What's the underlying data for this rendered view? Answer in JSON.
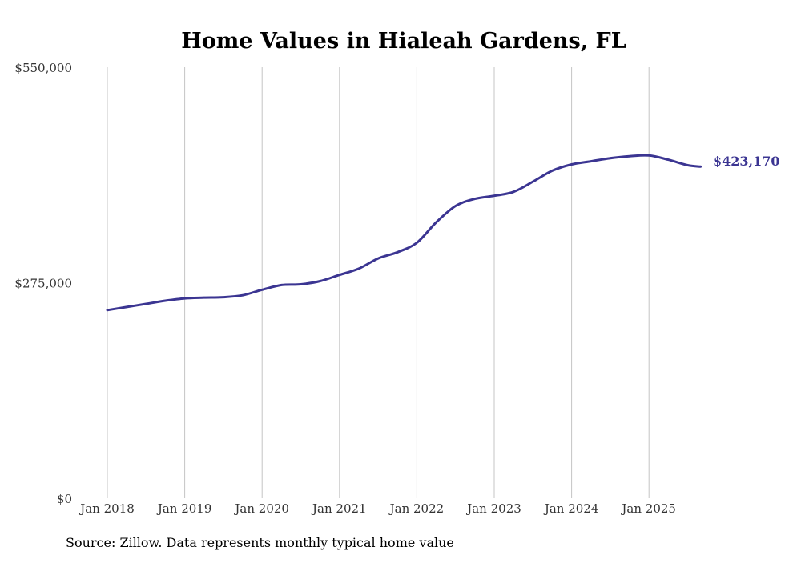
{
  "chart_data": {
    "type": "line",
    "title": "Home Values in Hialeah Gardens, FL",
    "source": "Source: Zillow. Data represents monthly typical home value",
    "xlabel": "",
    "ylabel": "",
    "ylim": [
      0,
      550000
    ],
    "y_ticks": [
      "$0",
      "$275,000",
      "$550,000"
    ],
    "x_ticks": [
      "Jan 2018",
      "Jan 2019",
      "Jan 2020",
      "Jan 2021",
      "Jan 2022",
      "Jan 2023",
      "Jan 2024",
      "Jan 2025"
    ],
    "grid": "vertical",
    "line_color": "#3b3592",
    "end_label": "$423,170",
    "series": [
      {
        "values": [
          [
            "2018-01",
            240000
          ],
          [
            "2018-04",
            244000
          ],
          [
            "2018-07",
            248000
          ],
          [
            "2018-10",
            252000
          ],
          [
            "2019-01",
            255000
          ],
          [
            "2019-04",
            256000
          ],
          [
            "2019-07",
            256500
          ],
          [
            "2019-10",
            259000
          ],
          [
            "2020-01",
            266000
          ],
          [
            "2020-04",
            272000
          ],
          [
            "2020-07",
            273000
          ],
          [
            "2020-10",
            277000
          ],
          [
            "2021-01",
            285000
          ],
          [
            "2021-04",
            293000
          ],
          [
            "2021-07",
            306000
          ],
          [
            "2021-10",
            314000
          ],
          [
            "2022-01",
            326000
          ],
          [
            "2022-04",
            352000
          ],
          [
            "2022-07",
            373000
          ],
          [
            "2022-10",
            382000
          ],
          [
            "2023-01",
            386000
          ],
          [
            "2023-04",
            391000
          ],
          [
            "2023-07",
            404000
          ],
          [
            "2023-10",
            418000
          ],
          [
            "2024-01",
            426000
          ],
          [
            "2024-04",
            430000
          ],
          [
            "2024-07",
            434000
          ],
          [
            "2024-10",
            436500
          ],
          [
            "2025-01",
            437500
          ],
          [
            "2025-04",
            432000
          ],
          [
            "2025-07",
            425000
          ],
          [
            "2025-09",
            423170
          ]
        ]
      }
    ]
  }
}
